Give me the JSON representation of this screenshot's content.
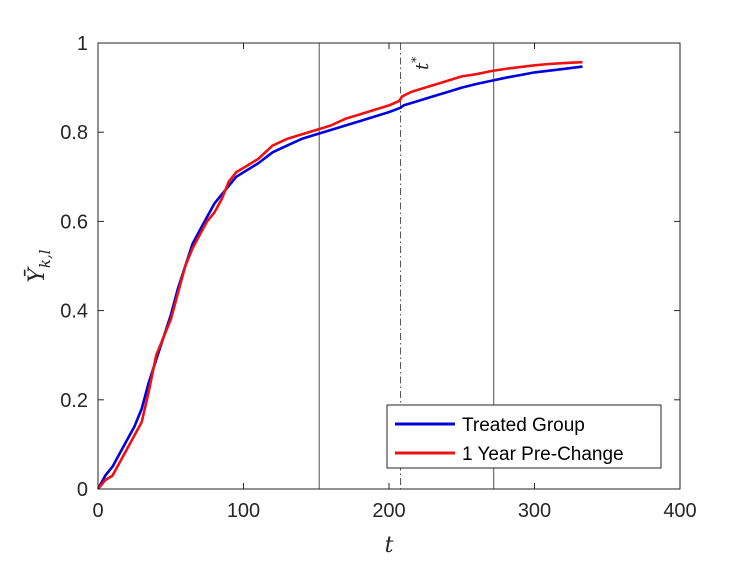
{
  "chart_data": {
    "type": "line",
    "title": "",
    "xlabel": "t",
    "ylabel_main": "Ȳ",
    "ylabel_sub": "k,l",
    "xlim": [
      0,
      400
    ],
    "ylim": [
      0,
      1
    ],
    "xticks": [
      0,
      100,
      200,
      300,
      400
    ],
    "xtick_labels": [
      "0",
      "100",
      "200",
      "300",
      "400"
    ],
    "yticks": [
      0,
      0.2,
      0.4,
      0.6,
      0.8,
      1
    ],
    "ytick_labels": [
      "0",
      "0.2",
      "0.4",
      "0.6",
      "0.8",
      "1"
    ],
    "grid": false,
    "legend_position": "bottom-right",
    "reference_lines": [
      {
        "x": 152,
        "style": "solid"
      },
      {
        "x": 208,
        "style": "dashdot"
      },
      {
        "x": 272,
        "style": "solid"
      }
    ],
    "annotation": {
      "text_main": "t",
      "text_sup": "*",
      "x": 208,
      "y": 0.99
    },
    "series": [
      {
        "name": "Treated Group",
        "color": "#0000dd",
        "x": [
          0,
          5,
          10,
          15,
          20,
          25,
          30,
          35,
          40,
          45,
          50,
          55,
          60,
          65,
          70,
          75,
          80,
          85,
          90,
          95,
          100,
          110,
          120,
          130,
          140,
          150,
          160,
          170,
          180,
          190,
          200,
          208,
          210,
          220,
          230,
          240,
          250,
          260,
          270,
          280,
          290,
          300,
          310,
          320,
          333
        ],
        "y": [
          0,
          0.03,
          0.05,
          0.08,
          0.11,
          0.14,
          0.18,
          0.24,
          0.29,
          0.34,
          0.39,
          0.45,
          0.5,
          0.55,
          0.58,
          0.61,
          0.64,
          0.66,
          0.68,
          0.7,
          0.71,
          0.73,
          0.755,
          0.77,
          0.785,
          0.795,
          0.805,
          0.815,
          0.825,
          0.835,
          0.845,
          0.855,
          0.86,
          0.87,
          0.88,
          0.89,
          0.9,
          0.908,
          0.915,
          0.922,
          0.928,
          0.934,
          0.938,
          0.942,
          0.947
        ]
      },
      {
        "name": "1 Year Pre-Change",
        "color": "#ee1111",
        "x": [
          0,
          5,
          10,
          15,
          20,
          25,
          30,
          35,
          40,
          45,
          50,
          55,
          60,
          65,
          70,
          75,
          80,
          85,
          90,
          95,
          100,
          110,
          120,
          130,
          140,
          150,
          160,
          170,
          180,
          190,
          200,
          207,
          209,
          215,
          220,
          230,
          240,
          250,
          260,
          270,
          280,
          290,
          300,
          310,
          320,
          333
        ],
        "y": [
          0,
          0.02,
          0.03,
          0.06,
          0.09,
          0.12,
          0.15,
          0.22,
          0.3,
          0.34,
          0.38,
          0.44,
          0.5,
          0.54,
          0.57,
          0.6,
          0.62,
          0.65,
          0.69,
          0.71,
          0.72,
          0.74,
          0.77,
          0.785,
          0.795,
          0.805,
          0.815,
          0.83,
          0.84,
          0.85,
          0.86,
          0.87,
          0.88,
          0.89,
          0.895,
          0.905,
          0.915,
          0.925,
          0.93,
          0.937,
          0.942,
          0.946,
          0.95,
          0.953,
          0.955,
          0.957
        ]
      }
    ]
  }
}
